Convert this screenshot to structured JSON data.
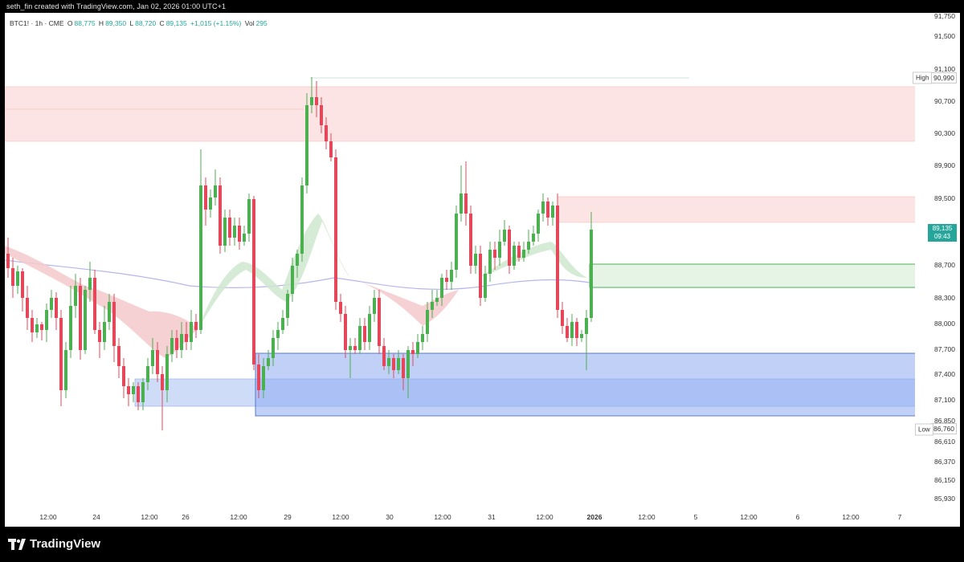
{
  "header": {
    "credit": "seth_fin created with TradingView.com, Jan 02, 2026 01:00 UTC+1"
  },
  "legend": {
    "symbol": "BTC1! · 1h · CME",
    "o_label": "O",
    "o_value": "88,775",
    "h_label": "H",
    "h_value": "89,350",
    "l_label": "L",
    "l_value": "88,720",
    "c_label": "C",
    "c_value": "89,135",
    "change": "+1,015 (+1.15%)",
    "vol_label": "Vol",
    "vol_value": "295"
  },
  "price_axis": {
    "labels": [
      "91,750",
      "91,500",
      "91,100",
      "90,700",
      "90,300",
      "89,900",
      "89,500",
      "88,700",
      "88,300",
      "88,000",
      "87,700",
      "87,400",
      "87,100",
      "86,850",
      "86,610",
      "86,370",
      "86,150",
      "85,930"
    ],
    "high_tag": "High",
    "high_value": "90,990",
    "low_tag": "Low",
    "low_value": "86,760",
    "current_price": "89,135",
    "countdown": "09:43"
  },
  "time_axis": {
    "labels": [
      "12:00",
      "24",
      "12:00",
      "26",
      "12:00",
      "29",
      "12:00",
      "30",
      "12:00",
      "31",
      "12:00",
      "2026",
      "12:00",
      "5",
      "12:00",
      "6",
      "12:00",
      "7"
    ]
  },
  "footer": {
    "brand": "TradingView"
  },
  "colors": {
    "up": "#26a69a",
    "up_candle": "#4caf50",
    "down": "#e5475a",
    "supply_zone": "#fde2e2",
    "demand_zone": "#8aa6ee",
    "target_zone": "#e6f4e6"
  }
}
